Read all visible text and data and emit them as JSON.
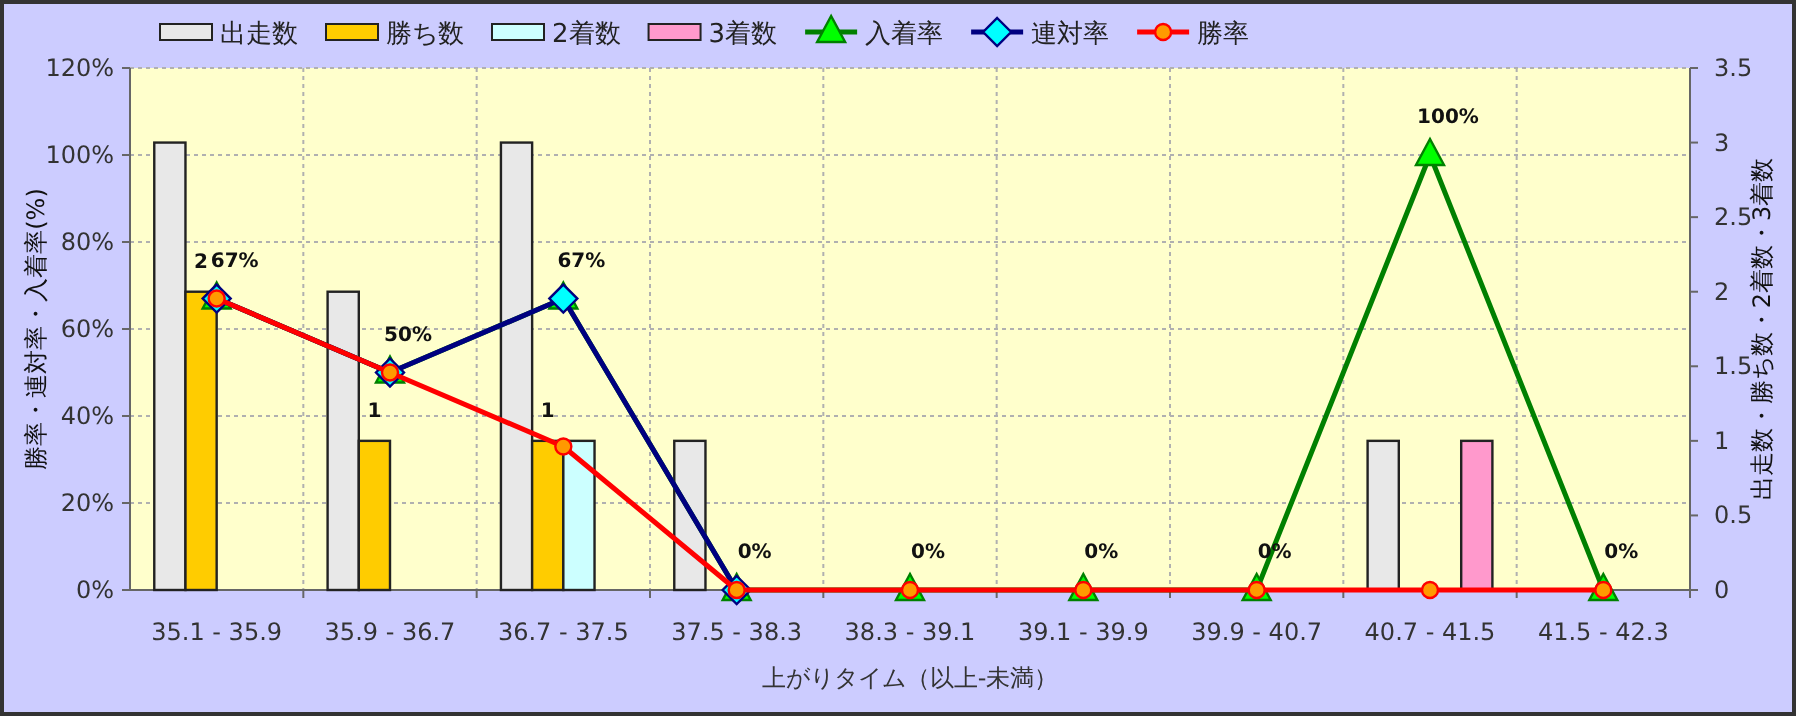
{
  "chart_data": {
    "type": "bar",
    "categories": [
      "35.1 - 35.9",
      "35.9 - 36.7",
      "36.7 - 37.5",
      "37.5 - 38.3",
      "38.3 - 39.1",
      "39.1 - 39.9",
      "39.9 - 40.7",
      "40.7 - 41.5",
      "41.5 - 42.3"
    ],
    "xlabel": "上がりタイム（以上-未満）",
    "ylabel": "勝率・連対率・入着率(%)",
    "y2label": "出走数・勝ち数・2着数・3着数",
    "series": [
      {
        "name": "出走数",
        "type": "bar",
        "axis": "y2",
        "color": "#e8e8e8",
        "values": [
          3,
          2,
          3,
          1,
          0,
          0,
          0,
          1,
          0
        ]
      },
      {
        "name": "勝ち数",
        "type": "bar",
        "axis": "y2",
        "color": "#ffcc00",
        "values": [
          2,
          1,
          1,
          0,
          0,
          0,
          0,
          0,
          0
        ],
        "value_labels": [
          "2",
          "1",
          "1",
          null,
          null,
          null,
          null,
          null,
          null
        ]
      },
      {
        "name": "2着数",
        "type": "bar",
        "axis": "y2",
        "color": "#ccffff",
        "values": [
          0,
          0,
          1,
          0,
          0,
          0,
          0,
          0,
          0
        ]
      },
      {
        "name": "3着数",
        "type": "bar",
        "axis": "y2",
        "color": "#ff99cc",
        "values": [
          0,
          0,
          0,
          0,
          0,
          0,
          0,
          1,
          0
        ]
      },
      {
        "name": "入着率",
        "type": "line",
        "marker": "triangle",
        "color": "#008000",
        "values": [
          67,
          50,
          67,
          0,
          0,
          0,
          0,
          100,
          0
        ],
        "value_labels": [
          "67%",
          "50%",
          "67%",
          "0%",
          "0%",
          "0%",
          "0%",
          "100%",
          "0%"
        ]
      },
      {
        "name": "連対率",
        "type": "line",
        "marker": "diamond",
        "color": "#000080",
        "values": [
          67,
          50,
          67,
          0,
          null,
          null,
          null,
          null,
          null
        ]
      },
      {
        "name": "勝率",
        "type": "line",
        "marker": "circle",
        "color": "#ff0000",
        "values": [
          67,
          50,
          33,
          0,
          0,
          0,
          0,
          0,
          0
        ]
      }
    ],
    "ylim": [
      0,
      120
    ],
    "yticks": [
      {
        "value": 0,
        "label": "0%"
      },
      {
        "value": 20,
        "label": "20%"
      },
      {
        "value": 40,
        "label": "40%"
      },
      {
        "value": 60,
        "label": "60%"
      },
      {
        "value": 80,
        "label": "80%"
      },
      {
        "value": 100,
        "label": "100%"
      },
      {
        "value": 120,
        "label": "120%"
      }
    ],
    "y2lim": [
      0,
      3.5
    ],
    "y2ticks": [
      0,
      0.5,
      1,
      1.5,
      2,
      2.5,
      3,
      3.5
    ],
    "grid": true,
    "legend": "top"
  }
}
